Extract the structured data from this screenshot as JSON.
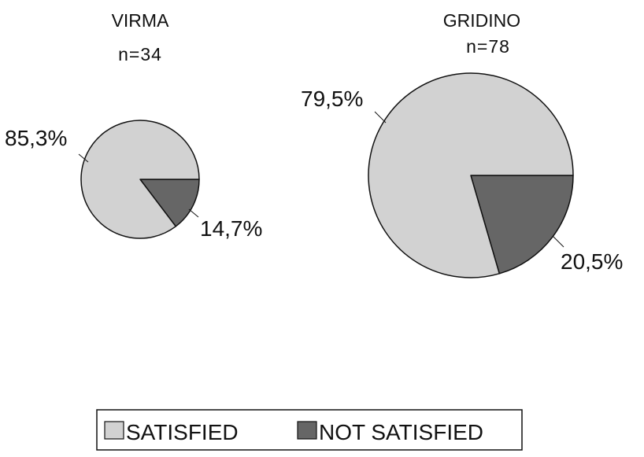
{
  "colors": {
    "satisfied": "#d2d2d2",
    "not_satisfied": "#666666",
    "outline": "#111111"
  },
  "legend": {
    "placement": "bottom-center",
    "items": [
      {
        "label": "SATISFIED",
        "color_key": "satisfied"
      },
      {
        "label": "NOT SATISFIED",
        "color_key": "not_satisfied"
      }
    ]
  },
  "chart_data": [
    {
      "type": "pie",
      "title": "VIRMA",
      "subtitle": "n=34",
      "categories": [
        "SATISFIED",
        "NOT SATISFIED"
      ],
      "values": [
        85.3,
        14.7
      ],
      "labels": [
        "85,3%",
        "14,7%"
      ]
    },
    {
      "type": "pie",
      "title": "GRIDINO",
      "subtitle": "n=78",
      "categories": [
        "SATISFIED",
        "NOT SATISFIED"
      ],
      "values": [
        79.5,
        20.5
      ],
      "labels": [
        "79,5%",
        "20,5%"
      ]
    }
  ]
}
